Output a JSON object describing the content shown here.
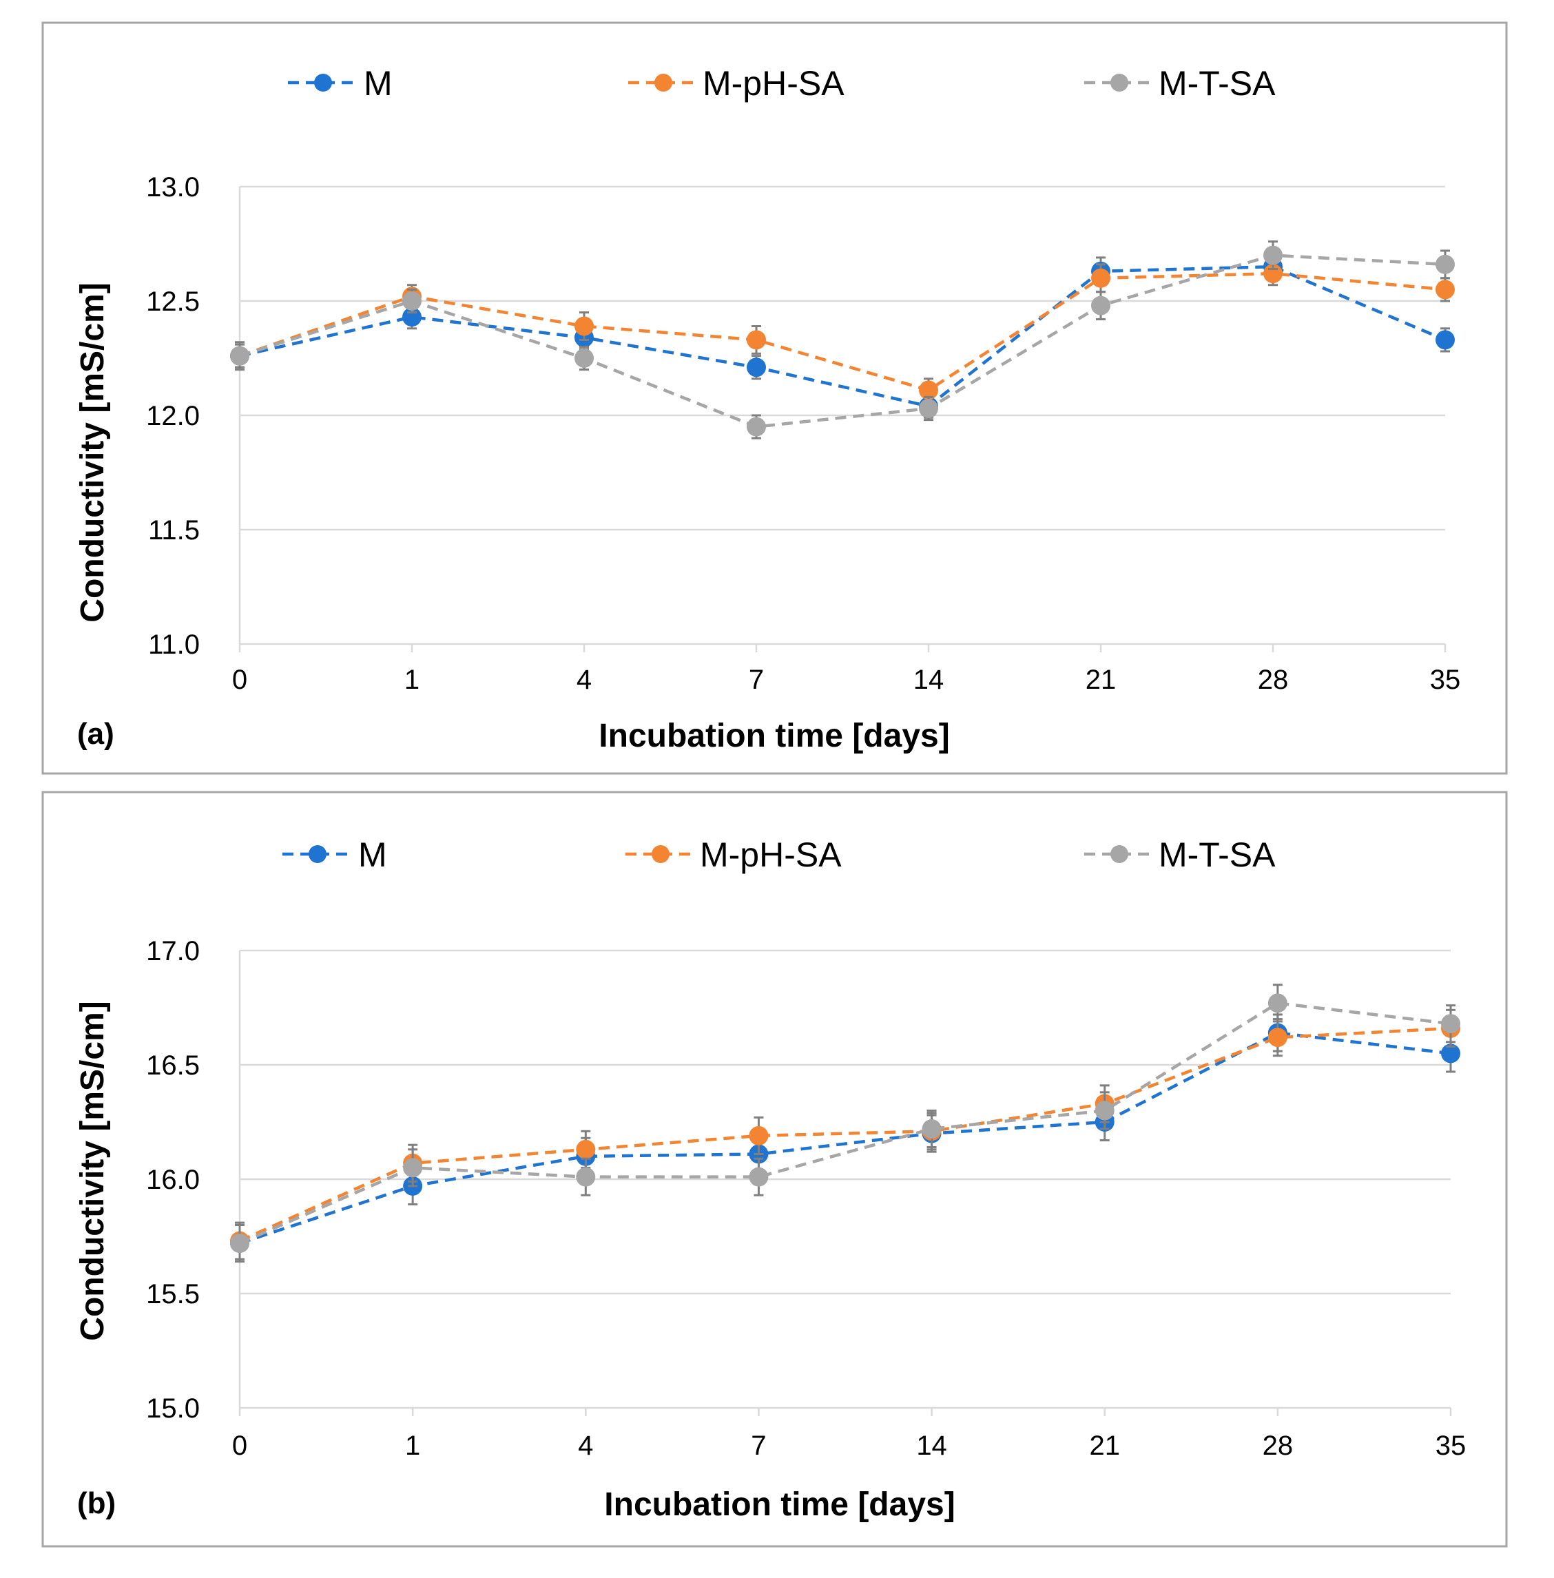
{
  "colors": {
    "M": "#1f73d1",
    "M-pH-SA": "#f28432",
    "M-T-SA": "#a6a6a6"
  },
  "chart_data": [
    {
      "type": "line",
      "panel_label": "(a)",
      "xlabel": "Incubation time [days]",
      "ylabel": "Conductivity [mS/cm]",
      "categories": [
        "0",
        "1",
        "4",
        "7",
        "14",
        "21",
        "28",
        "35"
      ],
      "ylim": [
        11.0,
        13.0
      ],
      "yticks": [
        "11.0",
        "11.5",
        "12.0",
        "12.5",
        "13.0"
      ],
      "grid": true,
      "legend_position": "top",
      "series": [
        {
          "name": "M",
          "values": [
            12.26,
            12.43,
            12.34,
            12.21,
            12.04,
            12.63,
            12.65,
            12.33
          ],
          "errors": [
            0.05,
            0.05,
            0.05,
            0.05,
            0.05,
            0.06,
            0.05,
            0.05
          ]
        },
        {
          "name": "M-pH-SA",
          "values": [
            12.26,
            12.52,
            12.39,
            12.33,
            12.11,
            12.6,
            12.62,
            12.55
          ],
          "errors": [
            0.05,
            0.05,
            0.06,
            0.06,
            0.05,
            0.06,
            0.05,
            0.05
          ]
        },
        {
          "name": "M-T-SA",
          "values": [
            12.26,
            12.5,
            12.25,
            11.95,
            12.03,
            12.48,
            12.7,
            12.66
          ],
          "errors": [
            0.06,
            0.05,
            0.05,
            0.05,
            0.05,
            0.06,
            0.06,
            0.06
          ]
        }
      ]
    },
    {
      "type": "line",
      "panel_label": "(b)",
      "xlabel": "Incubation time [days]",
      "ylabel": "Conductivity [mS/cm]",
      "categories": [
        "0",
        "1",
        "4",
        "7",
        "14",
        "21",
        "28",
        "35"
      ],
      "ylim": [
        15.0,
        17.0
      ],
      "yticks": [
        "15.0",
        "15.5",
        "16.0",
        "16.5",
        "17.0"
      ],
      "grid": true,
      "legend_position": "top",
      "series": [
        {
          "name": "M",
          "values": [
            15.72,
            15.97,
            16.1,
            16.11,
            16.2,
            16.25,
            16.64,
            16.55
          ],
          "errors": [
            0.08,
            0.08,
            0.08,
            0.08,
            0.08,
            0.08,
            0.08,
            0.08
          ]
        },
        {
          "name": "M-pH-SA",
          "values": [
            15.73,
            16.07,
            16.13,
            16.19,
            16.21,
            16.33,
            16.62,
            16.66
          ],
          "errors": [
            0.08,
            0.08,
            0.08,
            0.08,
            0.08,
            0.08,
            0.08,
            0.08
          ]
        },
        {
          "name": "M-T-SA",
          "values": [
            15.72,
            16.05,
            16.01,
            16.01,
            16.22,
            16.3,
            16.77,
            16.68
          ],
          "errors": [
            0.08,
            0.08,
            0.08,
            0.08,
            0.08,
            0.08,
            0.08,
            0.08
          ]
        }
      ]
    }
  ]
}
